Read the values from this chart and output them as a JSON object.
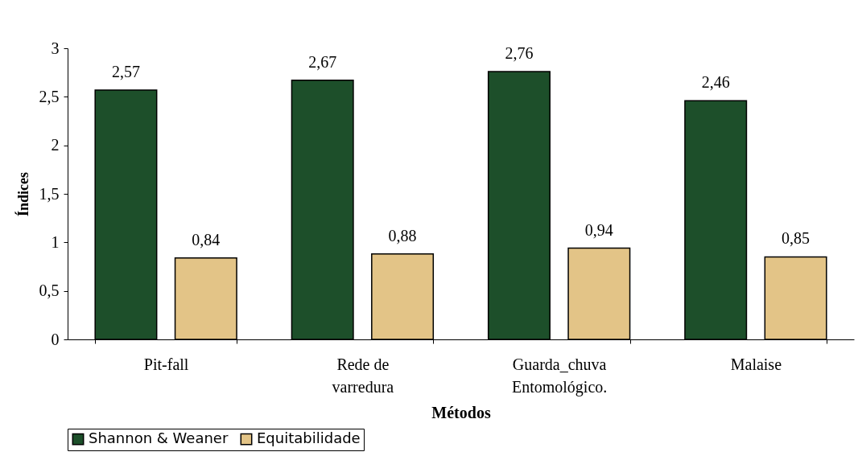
{
  "chart_data": {
    "type": "bar",
    "xlabel": "Métodos",
    "ylabel": "Índices",
    "categories": [
      "Pit-fall",
      "Rede de varredura",
      "Guarda_chuva Entomológico.",
      "Malaise"
    ],
    "series": [
      {
        "name": "Shannon & Weaner",
        "color": "#1d4f2a",
        "values": [
          2.57,
          2.67,
          2.76,
          2.46
        ],
        "value_labels": [
          "2,57",
          "2,67",
          "2,76",
          "2,46"
        ]
      },
      {
        "name": "Equitabilidade",
        "color": "#e3c487",
        "values": [
          0.84,
          0.88,
          0.94,
          0.85
        ],
        "value_labels": [
          "0,84",
          "0,88",
          "0,94",
          "0,85"
        ]
      }
    ],
    "ylim": [
      0,
      3
    ],
    "yticks": [
      0,
      {
        "value": 0.5,
        "label": "0,5"
      },
      1,
      {
        "value": 1.5,
        "label": "1,5"
      },
      2,
      {
        "value": 2.5,
        "label": "2,5"
      },
      3
    ],
    "grid": false,
    "legend": "bottom"
  }
}
